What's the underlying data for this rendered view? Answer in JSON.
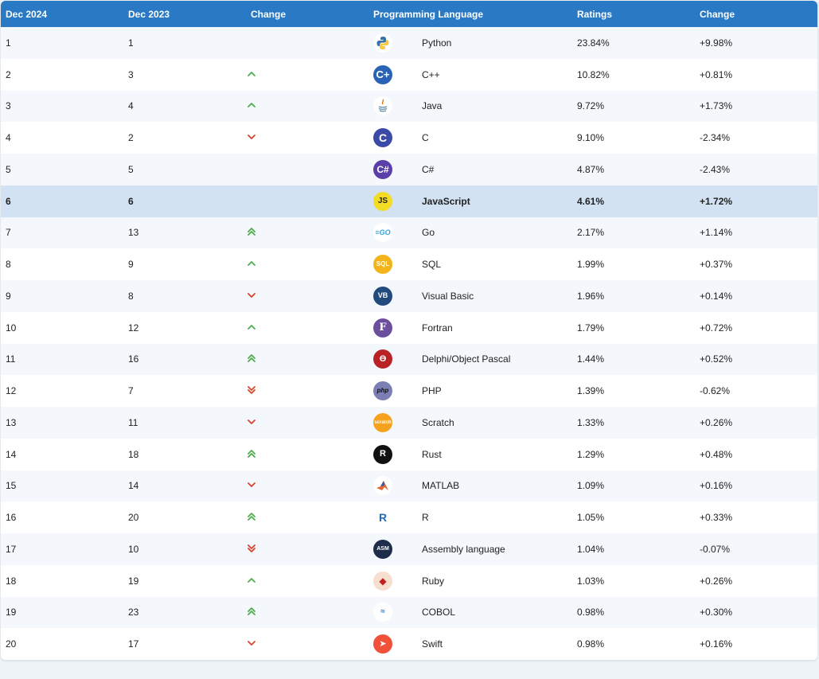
{
  "headers": {
    "current": "Dec 2024",
    "previous": "Dec 2023",
    "change": "Change",
    "language": "Programming Language",
    "ratings": "Ratings",
    "rating_change": "Change"
  },
  "colors": {
    "header_bg": "#2979c5",
    "up": "#4cae4c",
    "down": "#d9432b",
    "highlight": "#d3e2f3"
  },
  "rows": [
    {
      "cur": "1",
      "prev": "1",
      "trend": "none",
      "lang": "Python",
      "rating": "23.84%",
      "delta": "+9.98%",
      "icon": "python-logo-icon"
    },
    {
      "cur": "2",
      "prev": "3",
      "trend": "up",
      "lang": "C++",
      "rating": "10.82%",
      "delta": "+0.81%",
      "icon": "cpp-logo-icon"
    },
    {
      "cur": "3",
      "prev": "4",
      "trend": "up",
      "lang": "Java",
      "rating": "9.72%",
      "delta": "+1.73%",
      "icon": "java-logo-icon"
    },
    {
      "cur": "4",
      "prev": "2",
      "trend": "down",
      "lang": "C",
      "rating": "9.10%",
      "delta": "-2.34%",
      "icon": "c-logo-icon"
    },
    {
      "cur": "5",
      "prev": "5",
      "trend": "none",
      "lang": "C#",
      "rating": "4.87%",
      "delta": "-2.43%",
      "icon": "csharp-logo-icon"
    },
    {
      "cur": "6",
      "prev": "6",
      "trend": "none",
      "lang": "JavaScript",
      "rating": "4.61%",
      "delta": "+1.72%",
      "icon": "javascript-logo-icon",
      "highlight": true
    },
    {
      "cur": "7",
      "prev": "13",
      "trend": "up2",
      "lang": "Go",
      "rating": "2.17%",
      "delta": "+1.14%",
      "icon": "go-logo-icon"
    },
    {
      "cur": "8",
      "prev": "9",
      "trend": "up",
      "lang": "SQL",
      "rating": "1.99%",
      "delta": "+0.37%",
      "icon": "sql-logo-icon"
    },
    {
      "cur": "9",
      "prev": "8",
      "trend": "down",
      "lang": "Visual Basic",
      "rating": "1.96%",
      "delta": "+0.14%",
      "icon": "visual-basic-logo-icon"
    },
    {
      "cur": "10",
      "prev": "12",
      "trend": "up",
      "lang": "Fortran",
      "rating": "1.79%",
      "delta": "+0.72%",
      "icon": "fortran-logo-icon"
    },
    {
      "cur": "11",
      "prev": "16",
      "trend": "up2",
      "lang": "Delphi/Object Pascal",
      "rating": "1.44%",
      "delta": "+0.52%",
      "icon": "delphi-logo-icon"
    },
    {
      "cur": "12",
      "prev": "7",
      "trend": "down2",
      "lang": "PHP",
      "rating": "1.39%",
      "delta": "-0.62%",
      "icon": "php-logo-icon"
    },
    {
      "cur": "13",
      "prev": "11",
      "trend": "down",
      "lang": "Scratch",
      "rating": "1.33%",
      "delta": "+0.26%",
      "icon": "scratch-logo-icon"
    },
    {
      "cur": "14",
      "prev": "18",
      "trend": "up2",
      "lang": "Rust",
      "rating": "1.29%",
      "delta": "+0.48%",
      "icon": "rust-logo-icon"
    },
    {
      "cur": "15",
      "prev": "14",
      "trend": "down",
      "lang": "MATLAB",
      "rating": "1.09%",
      "delta": "+0.16%",
      "icon": "matlab-logo-icon"
    },
    {
      "cur": "16",
      "prev": "20",
      "trend": "up2",
      "lang": "R",
      "rating": "1.05%",
      "delta": "+0.33%",
      "icon": "r-logo-icon"
    },
    {
      "cur": "17",
      "prev": "10",
      "trend": "down2",
      "lang": "Assembly language",
      "rating": "1.04%",
      "delta": "-0.07%",
      "icon": "assembly-logo-icon"
    },
    {
      "cur": "18",
      "prev": "19",
      "trend": "up",
      "lang": "Ruby",
      "rating": "1.03%",
      "delta": "+0.26%",
      "icon": "ruby-logo-icon"
    },
    {
      "cur": "19",
      "prev": "23",
      "trend": "up2",
      "lang": "COBOL",
      "rating": "0.98%",
      "delta": "+0.30%",
      "icon": "cobol-logo-icon"
    },
    {
      "cur": "20",
      "prev": "17",
      "trend": "down",
      "lang": "Swift",
      "rating": "0.98%",
      "delta": "+0.16%",
      "icon": "swift-logo-icon"
    }
  ]
}
